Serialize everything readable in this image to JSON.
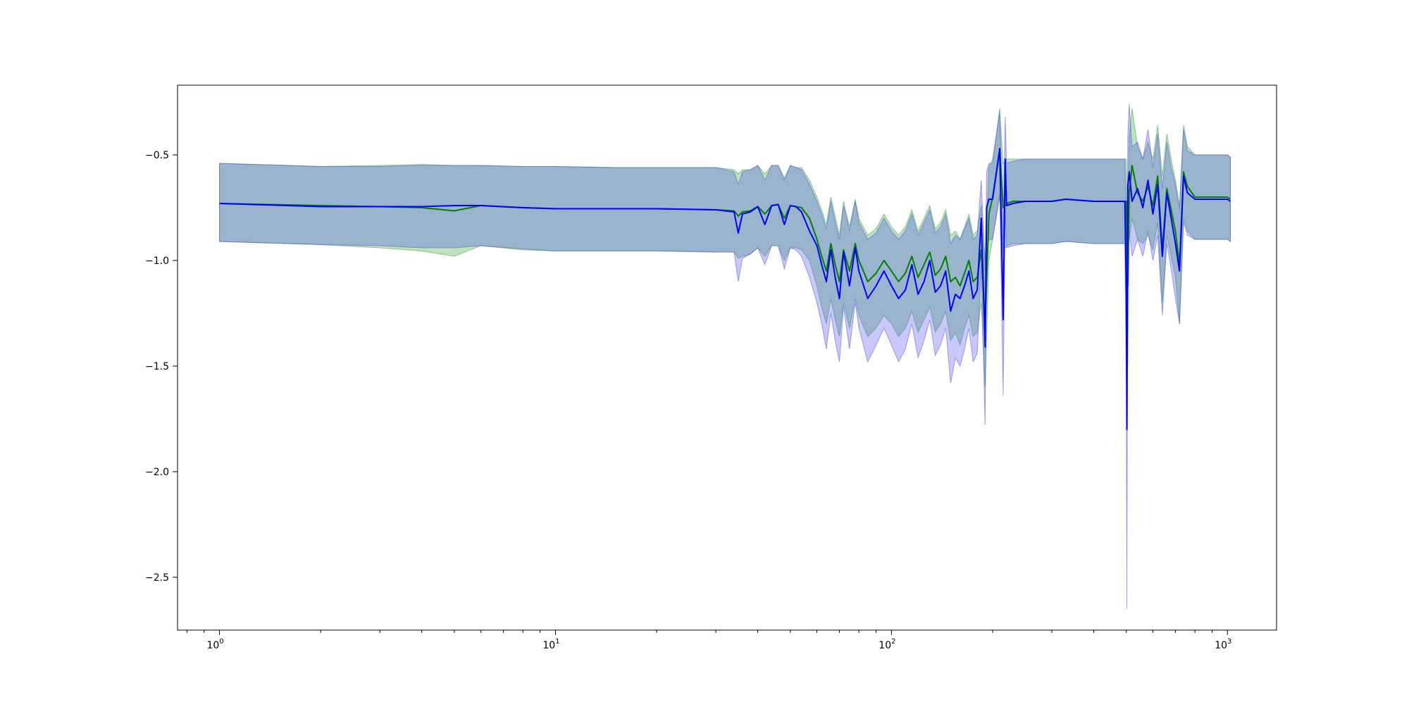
{
  "chart_data": {
    "type": "line",
    "title": "",
    "xlabel": "",
    "ylabel": "",
    "xscale": "log",
    "xlim": [
      0.75,
      1400
    ],
    "ylim": [
      -2.75,
      -0.17
    ],
    "grid": false,
    "legend": false,
    "x_ticks": [
      {
        "value": 1,
        "base": "10",
        "exp": "0"
      },
      {
        "value": 10,
        "base": "10",
        "exp": "1"
      },
      {
        "value": 100,
        "base": "10",
        "exp": "2"
      },
      {
        "value": 1000,
        "base": "10",
        "exp": "3"
      }
    ],
    "y_ticks": [
      {
        "value": -0.5,
        "label": "−0.5"
      },
      {
        "value": -1.0,
        "label": "−1.0"
      },
      {
        "value": -1.5,
        "label": "−1.5"
      },
      {
        "value": -2.0,
        "label": "−2.0"
      },
      {
        "value": -2.5,
        "label": "−2.5"
      }
    ],
    "series": [
      {
        "color": "#008000",
        "band_color": "#2ca02c",
        "x": [
          1,
          2,
          3,
          4,
          5,
          6,
          8,
          10,
          15,
          20,
          30,
          34,
          35,
          36,
          38,
          40,
          42,
          44,
          46,
          48,
          50,
          52,
          54,
          57,
          60,
          62,
          64,
          66,
          68,
          70,
          72,
          75,
          78,
          80,
          85,
          90,
          95,
          100,
          105,
          110,
          115,
          120,
          125,
          130,
          135,
          140,
          145,
          150,
          155,
          160,
          165,
          170,
          175,
          180,
          185,
          190,
          195,
          200,
          210,
          215,
          220,
          230,
          250,
          300,
          330,
          400,
          450,
          500,
          505,
          510,
          520,
          540,
          560,
          580,
          600,
          620,
          640,
          660,
          680,
          700,
          720,
          740,
          760,
          800,
          900,
          1000,
          1020
        ],
        "y": [
          -0.73,
          -0.74,
          -0.745,
          -0.75,
          -0.765,
          -0.74,
          -0.75,
          -0.755,
          -0.755,
          -0.755,
          -0.76,
          -0.765,
          -0.79,
          -0.77,
          -0.765,
          -0.745,
          -0.78,
          -0.74,
          -0.735,
          -0.8,
          -0.74,
          -0.745,
          -0.75,
          -0.8,
          -0.9,
          -0.98,
          -1.05,
          -0.92,
          -1.02,
          -1.1,
          -0.95,
          -1.05,
          -0.92,
          -1.0,
          -1.1,
          -1.06,
          -1.0,
          -1.05,
          -1.1,
          -1.06,
          -0.98,
          -1.08,
          -1.02,
          -0.96,
          -1.07,
          -1.04,
          -0.98,
          -1.1,
          -1.08,
          -1.12,
          -1.06,
          -1.0,
          -1.1,
          -1.08,
          -0.95,
          -1.3,
          -0.78,
          -0.7,
          -0.48,
          -0.75,
          -0.73,
          -0.72,
          -0.72,
          -0.72,
          -0.71,
          -0.72,
          -0.72,
          -0.72,
          -1.12,
          -0.68,
          -0.55,
          -0.68,
          -0.72,
          -0.65,
          -0.74,
          -0.6,
          -0.95,
          -0.66,
          -0.76,
          -0.86,
          -1.02,
          -0.58,
          -0.65,
          -0.7,
          -0.7,
          -0.7,
          -0.71
        ],
        "upper": [
          -0.54,
          -0.555,
          -0.55,
          -0.545,
          -0.55,
          -0.55,
          -0.555,
          -0.555,
          -0.56,
          -0.56,
          -0.56,
          -0.57,
          -0.59,
          -0.57,
          -0.57,
          -0.55,
          -0.59,
          -0.55,
          -0.55,
          -0.61,
          -0.55,
          -0.56,
          -0.56,
          -0.62,
          -0.7,
          -0.76,
          -0.83,
          -0.7,
          -0.79,
          -0.88,
          -0.72,
          -0.84,
          -0.71,
          -0.8,
          -0.88,
          -0.85,
          -0.78,
          -0.84,
          -0.88,
          -0.84,
          -0.76,
          -0.86,
          -0.8,
          -0.74,
          -0.85,
          -0.82,
          -0.76,
          -0.88,
          -0.86,
          -0.9,
          -0.84,
          -0.78,
          -0.88,
          -0.86,
          -0.74,
          -1.0,
          -0.56,
          -0.52,
          -0.3,
          -0.54,
          -0.52,
          -0.52,
          -0.52,
          -0.52,
          -0.52,
          -0.52,
          -0.52,
          -0.52,
          -0.85,
          -0.42,
          -0.28,
          -0.46,
          -0.52,
          -0.44,
          -0.52,
          -0.36,
          -0.6,
          -0.4,
          -0.52,
          -0.62,
          -0.74,
          -0.36,
          -0.46,
          -0.5,
          -0.5,
          -0.5,
          -0.51
        ],
        "lower": [
          -0.91,
          -0.925,
          -0.94,
          -0.955,
          -0.98,
          -0.93,
          -0.95,
          -0.955,
          -0.955,
          -0.955,
          -0.96,
          -0.96,
          -0.99,
          -0.98,
          -0.97,
          -0.94,
          -0.98,
          -0.93,
          -0.93,
          -1.0,
          -0.94,
          -0.94,
          -0.95,
          -1.0,
          -1.12,
          -1.22,
          -1.3,
          -1.18,
          -1.28,
          -1.36,
          -1.2,
          -1.32,
          -1.18,
          -1.26,
          -1.36,
          -1.32,
          -1.26,
          -1.3,
          -1.36,
          -1.32,
          -1.24,
          -1.34,
          -1.28,
          -1.22,
          -1.34,
          -1.3,
          -1.24,
          -1.38,
          -1.34,
          -1.4,
          -1.32,
          -1.26,
          -1.36,
          -1.34,
          -1.2,
          -1.6,
          -1.0,
          -0.9,
          -0.7,
          -0.95,
          -0.93,
          -0.92,
          -0.92,
          -0.92,
          -0.91,
          -0.92,
          -0.92,
          -0.92,
          -1.5,
          -0.9,
          -0.8,
          -0.9,
          -0.92,
          -0.88,
          -0.95,
          -0.82,
          -1.2,
          -0.88,
          -0.98,
          -1.08,
          -1.3,
          -0.8,
          -0.86,
          -0.9,
          -0.9,
          -0.9,
          -0.91
        ]
      },
      {
        "color": "#0000ff",
        "band_color": "#4a4aee",
        "x": [
          1,
          2,
          3,
          4,
          5,
          6,
          8,
          10,
          15,
          20,
          30,
          34,
          35,
          36,
          38,
          40,
          42,
          44,
          46,
          48,
          50,
          52,
          54,
          57,
          60,
          62,
          64,
          66,
          68,
          70,
          72,
          75,
          78,
          80,
          85,
          90,
          95,
          100,
          105,
          110,
          115,
          120,
          125,
          130,
          135,
          140,
          145,
          150,
          155,
          160,
          165,
          170,
          175,
          180,
          185,
          190,
          192,
          195,
          200,
          210,
          215,
          218,
          220,
          230,
          250,
          300,
          330,
          400,
          450,
          495,
          500,
          502,
          505,
          510,
          520,
          540,
          560,
          580,
          600,
          620,
          640,
          660,
          680,
          700,
          720,
          740,
          760,
          800,
          900,
          1000,
          1020
        ],
        "y": [
          -0.73,
          -0.745,
          -0.745,
          -0.745,
          -0.74,
          -0.74,
          -0.75,
          -0.755,
          -0.755,
          -0.755,
          -0.76,
          -0.77,
          -0.87,
          -0.78,
          -0.77,
          -0.745,
          -0.83,
          -0.74,
          -0.735,
          -0.83,
          -0.74,
          -0.745,
          -0.77,
          -0.86,
          -0.93,
          -1.02,
          -1.1,
          -0.95,
          -1.08,
          -1.18,
          -0.96,
          -1.12,
          -0.94,
          -1.05,
          -1.18,
          -1.12,
          -1.05,
          -1.12,
          -1.18,
          -1.14,
          -1.02,
          -1.16,
          -1.1,
          -1.0,
          -1.15,
          -1.12,
          -1.05,
          -1.24,
          -1.16,
          -1.18,
          -1.12,
          -1.05,
          -1.18,
          -1.14,
          -0.8,
          -1.41,
          -0.75,
          -0.71,
          -0.71,
          -0.47,
          -1.28,
          -0.52,
          -0.74,
          -0.73,
          -0.72,
          -0.72,
          -0.71,
          -0.72,
          -0.72,
          -0.72,
          -1.16,
          -1.8,
          -0.65,
          -0.58,
          -0.72,
          -0.66,
          -0.75,
          -0.62,
          -0.78,
          -0.64,
          -0.98,
          -0.68,
          -0.8,
          -0.92,
          -1.05,
          -0.6,
          -0.68,
          -0.71,
          -0.71,
          -0.71,
          -0.72
        ],
        "upper": [
          -0.54,
          -0.555,
          -0.555,
          -0.55,
          -0.55,
          -0.55,
          -0.555,
          -0.555,
          -0.56,
          -0.56,
          -0.56,
          -0.58,
          -0.64,
          -0.58,
          -0.57,
          -0.55,
          -0.62,
          -0.55,
          -0.55,
          -0.62,
          -0.55,
          -0.56,
          -0.57,
          -0.64,
          -0.72,
          -0.78,
          -0.85,
          -0.72,
          -0.82,
          -0.9,
          -0.74,
          -0.86,
          -0.72,
          -0.82,
          -0.9,
          -0.87,
          -0.8,
          -0.86,
          -0.9,
          -0.86,
          -0.78,
          -0.88,
          -0.82,
          -0.76,
          -0.87,
          -0.84,
          -0.78,
          -0.92,
          -0.88,
          -0.9,
          -0.85,
          -0.8,
          -0.9,
          -0.88,
          -0.62,
          -1.05,
          -0.58,
          -0.54,
          -0.54,
          -0.28,
          -0.9,
          -0.32,
          -0.54,
          -0.53,
          -0.52,
          -0.52,
          -0.52,
          -0.52,
          -0.52,
          -0.52,
          -0.8,
          -1.3,
          -0.42,
          -0.26,
          -0.46,
          -0.44,
          -0.52,
          -0.38,
          -0.56,
          -0.4,
          -0.66,
          -0.44,
          -0.56,
          -0.64,
          -0.76,
          -0.38,
          -0.48,
          -0.5,
          -0.5,
          -0.5,
          -0.51
        ],
        "lower": [
          -0.91,
          -0.925,
          -0.93,
          -0.94,
          -0.94,
          -0.93,
          -0.945,
          -0.955,
          -0.955,
          -0.955,
          -0.96,
          -0.96,
          -1.1,
          -0.99,
          -0.97,
          -0.94,
          -1.02,
          -0.93,
          -0.93,
          -1.04,
          -0.94,
          -0.95,
          -0.98,
          -1.08,
          -1.2,
          -1.3,
          -1.42,
          -1.25,
          -1.38,
          -1.48,
          -1.22,
          -1.42,
          -1.2,
          -1.32,
          -1.48,
          -1.4,
          -1.32,
          -1.4,
          -1.48,
          -1.42,
          -1.3,
          -1.46,
          -1.38,
          -1.28,
          -1.45,
          -1.4,
          -1.32,
          -1.58,
          -1.46,
          -1.5,
          -1.42,
          -1.32,
          -1.48,
          -1.44,
          -1.02,
          -1.78,
          -0.96,
          -0.9,
          -0.9,
          -0.68,
          -1.64,
          -0.74,
          -0.94,
          -0.93,
          -0.92,
          -0.92,
          -0.91,
          -0.92,
          -0.92,
          -0.92,
          -1.6,
          -2.65,
          -0.9,
          -0.86,
          -0.98,
          -0.9,
          -0.98,
          -0.86,
          -1.0,
          -0.88,
          -1.26,
          -0.92,
          -1.04,
          -1.18,
          -1.3,
          -0.82,
          -0.88,
          -0.9,
          -0.9,
          -0.9,
          -0.91
        ]
      }
    ]
  }
}
